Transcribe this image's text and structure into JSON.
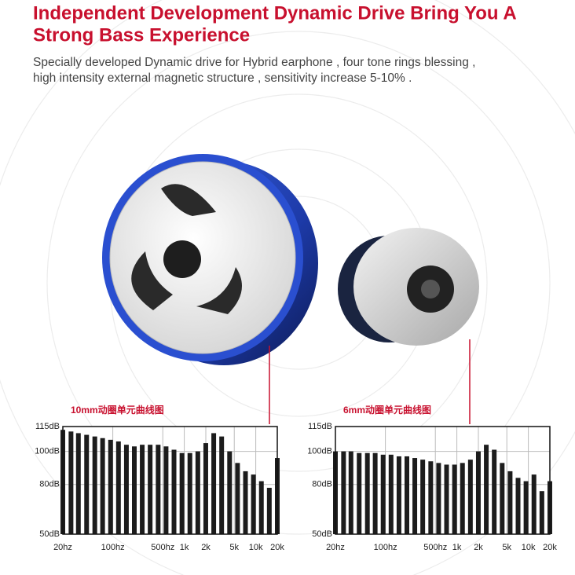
{
  "header": {
    "title": [
      "Independent Development Dynamic Drive Bring You A",
      "Strong Bass Experience"
    ],
    "subtitle": [
      "Specially developed Dynamic drive for Hybrid earphone , four tone rings blessing ,",
      "high intensity external magnetic structure , sensitivity increase 5-10% ."
    ]
  },
  "chart_data": [
    {
      "type": "bar",
      "title": "10mm动圈单元曲线图",
      "x": [
        20,
        26,
        33,
        43,
        56,
        72,
        93,
        120,
        155,
        200,
        258,
        333,
        431,
        556,
        718,
        928,
        1198,
        1547,
        1998,
        2581,
        3333,
        4305,
        5559,
        7180,
        9273,
        11976,
        15467,
        20000
      ],
      "values": [
        113,
        112,
        111,
        110,
        109,
        108,
        107,
        106,
        104,
        103,
        104,
        104,
        104,
        103,
        101,
        99,
        99,
        100,
        105,
        111,
        109,
        100,
        93,
        88,
        86,
        82,
        78,
        96
      ],
      "color": "#1c1c1c",
      "xscale": "log",
      "xlim": [
        20,
        20000
      ],
      "xticks": [
        {
          "value": 20,
          "label": "20hz"
        },
        {
          "value": 100,
          "label": "100hz"
        },
        {
          "value": 500,
          "label": "500hz"
        },
        {
          "value": 1000,
          "label": "1k"
        },
        {
          "value": 2000,
          "label": "2k"
        },
        {
          "value": 5000,
          "label": "5k"
        },
        {
          "value": 10000,
          "label": "10k"
        },
        {
          "value": 20000,
          "label": "20k"
        }
      ],
      "ylim": [
        50,
        115
      ],
      "yticks": [
        {
          "value": 50,
          "label": "50dB"
        },
        {
          "value": 80,
          "label": "80dB"
        },
        {
          "value": 100,
          "label": "100dB"
        },
        {
          "value": 115,
          "label": "115dB"
        }
      ],
      "grid": true
    },
    {
      "type": "bar",
      "title": "6mm动圈单元曲线图",
      "x": [
        20,
        26,
        33,
        43,
        56,
        72,
        93,
        120,
        155,
        200,
        258,
        333,
        431,
        556,
        718,
        928,
        1198,
        1547,
        1998,
        2581,
        3333,
        4305,
        5559,
        7180,
        9273,
        11976,
        15467,
        20000
      ],
      "values": [
        100,
        100,
        100,
        99,
        99,
        99,
        98,
        98,
        97,
        97,
        96,
        95,
        94,
        93,
        92,
        92,
        93,
        95,
        100,
        104,
        101,
        93,
        88,
        84,
        82,
        86,
        76,
        82
      ],
      "color": "#1c1c1c",
      "xscale": "log",
      "xlim": [
        20,
        20000
      ],
      "xticks": [
        {
          "value": 20,
          "label": "20hz"
        },
        {
          "value": 100,
          "label": "100hz"
        },
        {
          "value": 500,
          "label": "500hz"
        },
        {
          "value": 1000,
          "label": "1k"
        },
        {
          "value": 2000,
          "label": "2k"
        },
        {
          "value": 5000,
          "label": "5k"
        },
        {
          "value": 10000,
          "label": "10k"
        },
        {
          "value": 20000,
          "label": "20k"
        }
      ],
      "ylim": [
        50,
        115
      ],
      "yticks": [
        {
          "value": 50,
          "label": "50dB"
        },
        {
          "value": 80,
          "label": "80dB"
        },
        {
          "value": 100,
          "label": "100dB"
        },
        {
          "value": 115,
          "label": "115dB"
        }
      ],
      "grid": true
    }
  ]
}
